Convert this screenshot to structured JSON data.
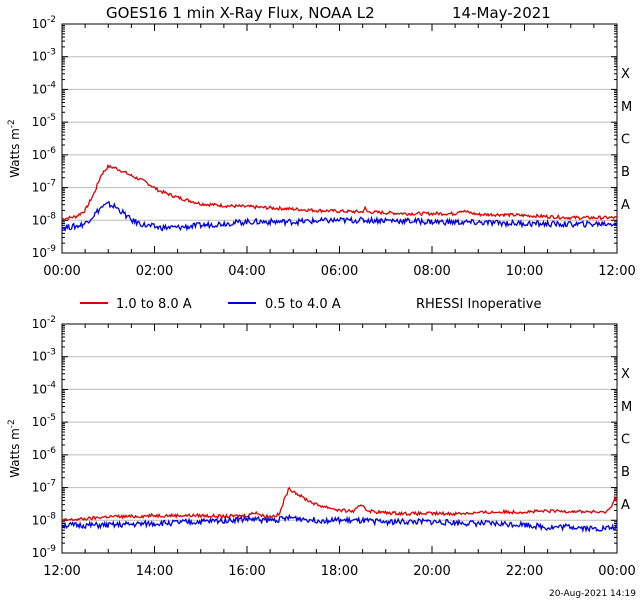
{
  "header": {
    "title": "GOES16 1 min X-Ray Flux, NOAA L2",
    "date": "14-May-2021"
  },
  "footer": {
    "timestamp": "20-Aug-2021 14:19"
  },
  "legend": {
    "placement": "between-panels",
    "entries": [
      {
        "label": "1.0 to 8.0 A",
        "color": "#dd0000"
      },
      {
        "label": "0.5 to 4.0 A",
        "color": "#0000dd"
      }
    ],
    "note": "RHESSI Inoperative"
  },
  "colors": {
    "long": "#dd0000",
    "short": "#0000dd",
    "grid": "#bbbbbb",
    "axis": "#000000"
  },
  "chart_data": [
    {
      "type": "line",
      "panel": "top",
      "ylabel": "Watts m",
      "ylabel_superscript": "-2",
      "yscale": "log",
      "ylim": [
        1e-09,
        0.01
      ],
      "ytick_base": "10",
      "ytick_exponents": [
        "-9",
        "-8",
        "-7",
        "-6",
        "-5",
        "-4",
        "-3",
        "-2"
      ],
      "flare_classes": [
        {
          "label": "A",
          "value": 1e-08
        },
        {
          "label": "B",
          "value": 1e-07
        },
        {
          "label": "C",
          "value": 1e-06
        },
        {
          "label": "M",
          "value": 1e-05
        },
        {
          "label": "X",
          "value": 0.0001
        }
      ],
      "xlim": [
        0,
        12
      ],
      "x_unit": "hours",
      "x_ticks": [
        "00:00",
        "02:00",
        "04:00",
        "06:00",
        "08:00",
        "10:00",
        "12:00"
      ],
      "grid": true,
      "series": [
        {
          "name": "1.0 to 8.0 A",
          "color": "#dd0000",
          "x": [
            0,
            0.3,
            0.5,
            0.7,
            0.85,
            1.0,
            1.15,
            1.3,
            1.5,
            1.8,
            2.1,
            2.5,
            3.0,
            3.5,
            4.0,
            4.5,
            5.0,
            5.5,
            6.0,
            6.5,
            6.55,
            6.6,
            7.0,
            7.5,
            8.0,
            8.5,
            8.6,
            9.0,
            9.5,
            10.0,
            10.5,
            11.0,
            11.5,
            12.0
          ],
          "values": [
            1.1e-08,
            1.3e-08,
            2e-08,
            7e-08,
            2.5e-07,
            4.4e-07,
            4e-07,
            3.2e-07,
            2.3e-07,
            1.5e-07,
            8e-08,
            5e-08,
            3.2e-08,
            2.8e-08,
            2.6e-08,
            2.4e-08,
            2.2e-08,
            2e-08,
            1.9e-08,
            1.8e-08,
            2.4e-08,
            1.8e-08,
            1.7e-08,
            1.6e-08,
            1.6e-08,
            1.6e-08,
            2e-08,
            1.5e-08,
            1.5e-08,
            1.4e-08,
            1.3e-08,
            1.2e-08,
            1.2e-08,
            1.2e-08
          ]
        },
        {
          "name": "0.5 to 4.0 A",
          "color": "#0000dd",
          "x": [
            0,
            0.3,
            0.5,
            0.7,
            0.85,
            1.0,
            1.15,
            1.3,
            1.5,
            1.8,
            2.1,
            2.5,
            3.0,
            3.5,
            4.0,
            5.0,
            6.0,
            7.0,
            8.0,
            9.0,
            10.0,
            11.0,
            12.0
          ],
          "values": [
            6e-09,
            6.5e-09,
            8e-09,
            1.5e-08,
            2.5e-08,
            3.1e-08,
            2.6e-08,
            1.8e-08,
            1e-08,
            7e-09,
            6e-09,
            6e-09,
            7e-09,
            8e-09,
            9e-09,
            9e-09,
            1e-08,
            1e-08,
            9e-09,
            8.5e-09,
            8e-09,
            7.5e-09,
            8e-09
          ]
        }
      ]
    },
    {
      "type": "line",
      "panel": "bottom",
      "ylabel": "Watts m",
      "ylabel_superscript": "-2",
      "yscale": "log",
      "ylim": [
        1e-09,
        0.01
      ],
      "ytick_base": "10",
      "ytick_exponents": [
        "-9",
        "-8",
        "-7",
        "-6",
        "-5",
        "-4",
        "-3",
        "-2"
      ],
      "flare_classes": [
        {
          "label": "A",
          "value": 1e-08
        },
        {
          "label": "B",
          "value": 1e-07
        },
        {
          "label": "C",
          "value": 1e-06
        },
        {
          "label": "M",
          "value": 1e-05
        },
        {
          "label": "X",
          "value": 0.0001
        }
      ],
      "xlim": [
        12,
        24
      ],
      "x_unit": "hours",
      "x_ticks": [
        "12:00",
        "14:00",
        "16:00",
        "18:00",
        "20:00",
        "22:00",
        "00:00"
      ],
      "grid": true,
      "series": [
        {
          "name": "1.0 to 8.0 A",
          "color": "#dd0000",
          "x": [
            12,
            12.5,
            13.0,
            13.5,
            14.0,
            14.5,
            15.0,
            15.5,
            16.0,
            16.2,
            16.3,
            16.5,
            16.7,
            16.8,
            16.9,
            17.0,
            17.2,
            17.5,
            17.8,
            18.0,
            18.3,
            18.5,
            18.6,
            18.8,
            19.0,
            19.5,
            20.0,
            20.5,
            21.0,
            21.5,
            22.0,
            22.5,
            23.0,
            23.5,
            23.7,
            23.85,
            23.95,
            24.0
          ],
          "values": [
            1e-08,
            1.1e-08,
            1.3e-08,
            1.3e-08,
            1.4e-08,
            1.4e-08,
            1.4e-08,
            1.3e-08,
            1.4e-08,
            1.8e-08,
            1.4e-08,
            1.3e-08,
            1.5e-08,
            4e-08,
            9e-08,
            8e-08,
            5e-08,
            3e-08,
            2.4e-08,
            2e-08,
            1.9e-08,
            3e-08,
            2e-08,
            1.8e-08,
            1.7e-08,
            1.6e-08,
            1.6e-08,
            1.6e-08,
            1.7e-08,
            1.8e-08,
            1.8e-08,
            1.9e-08,
            1.9e-08,
            1.8e-08,
            1.7e-08,
            2.2e-08,
            5e-08,
            4e-08
          ]
        },
        {
          "name": "0.5 to 4.0 A",
          "color": "#0000dd",
          "x": [
            12,
            13,
            14,
            15,
            16,
            16.5,
            17,
            17.5,
            18,
            19,
            20,
            21,
            22,
            22.5,
            23,
            23.5,
            24
          ],
          "values": [
            7e-09,
            7e-09,
            8e-09,
            9e-09,
            1.1e-08,
            1e-08,
            1.2e-08,
            1e-08,
            1e-08,
            9e-09,
            9e-09,
            8e-09,
            7.5e-09,
            6e-09,
            6.5e-09,
            5.5e-09,
            6e-09
          ]
        }
      ]
    }
  ]
}
